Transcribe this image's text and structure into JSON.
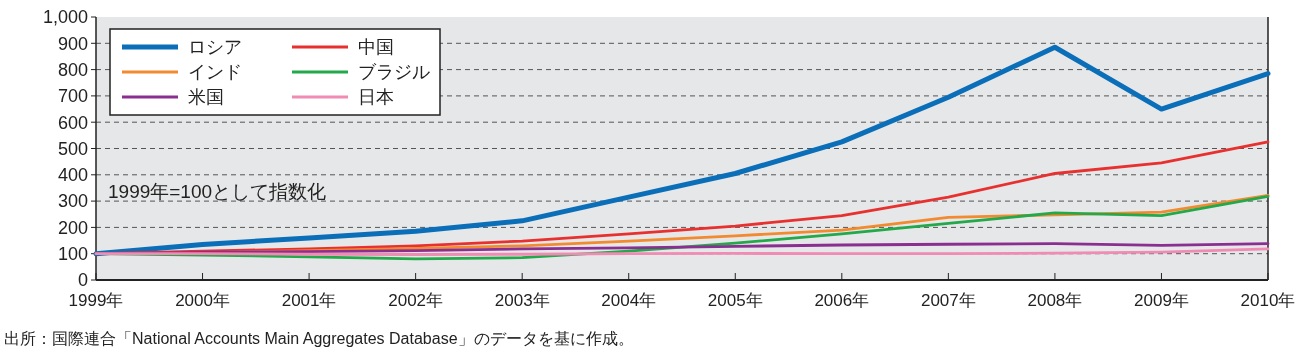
{
  "chart_data": {
    "type": "line",
    "categories": [
      "1999年",
      "2000年",
      "2001年",
      "2002年",
      "2003年",
      "2004年",
      "2005年",
      "2006年",
      "2007年",
      "2008年",
      "2009年",
      "2010年"
    ],
    "series": [
      {
        "name": "ロシア",
        "color": "#0a6fb8",
        "values": [
          100,
          135,
          160,
          185,
          225,
          315,
          405,
          525,
          695,
          885,
          650,
          785
        ]
      },
      {
        "name": "中国",
        "color": "#e8302f",
        "values": [
          100,
          110,
          118,
          130,
          148,
          175,
          205,
          245,
          315,
          405,
          445,
          525
        ]
      },
      {
        "name": "インド",
        "color": "#f28a30",
        "values": [
          100,
          103,
          112,
          120,
          130,
          148,
          168,
          190,
          238,
          248,
          258,
          322
        ]
      },
      {
        "name": "ブラジル",
        "color": "#23a84a",
        "values": [
          100,
          95,
          88,
          80,
          85,
          110,
          140,
          175,
          215,
          255,
          245,
          318
        ]
      },
      {
        "name": "米国",
        "color": "#8a2f8f",
        "values": [
          100,
          105,
          108,
          112,
          118,
          122,
          128,
          133,
          136,
          138,
          132,
          138
        ]
      },
      {
        "name": "日本",
        "color": "#f08bb4",
        "values": [
          100,
          100,
          98,
          97,
          98,
          100,
          101,
          100,
          100,
          102,
          106,
          118
        ]
      }
    ],
    "ylim": [
      0,
      1000
    ],
    "yticks": [
      0,
      100,
      200,
      300,
      400,
      500,
      600,
      700,
      800,
      900,
      {
        "value": 1000,
        "label": "1,000"
      }
    ],
    "grid": "y",
    "legend": "top left",
    "annotations": [
      "1999年=100として指数化",
      "出所：国際連合「National Accounts Main Aggregates Database」のデータを基に作成。"
    ]
  }
}
